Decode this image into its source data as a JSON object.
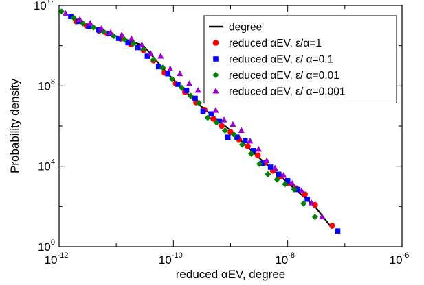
{
  "chart_data": {
    "type": "scatter",
    "xlabel": "reduced  αEV, degree",
    "ylabel": "Probability density",
    "x_scale": "log",
    "y_scale": "log",
    "xlim": [
      1e-12,
      1e-06
    ],
    "ylim": [
      1,
      1000000000000.0
    ],
    "x_ticks": [
      {
        "base": "10",
        "exp": "-12"
      },
      {
        "base": "10",
        "exp": "-10"
      },
      {
        "base": "10",
        "exp": "-8"
      },
      {
        "base": "10",
        "exp": "-6"
      }
    ],
    "y_ticks": [
      {
        "base": "10",
        "exp": "0"
      },
      {
        "base": "10",
        "exp": "4"
      },
      {
        "base": "10",
        "exp": "8"
      },
      {
        "base": "10",
        "exp": "12"
      }
    ],
    "grid": false,
    "legend_position": "top-right",
    "series": [
      {
        "name": "degree",
        "kind": "line",
        "color": "#000000",
        "points": [
          [
            1.5e-12,
            300000000000.0
          ],
          [
            3e-12,
            100000000000.0
          ],
          [
            1e-11,
            30000000000.0
          ],
          [
            3e-11,
            10000000000.0
          ],
          [
            6e-11,
            1000000000.0
          ],
          [
            1e-10,
            200000000.0
          ],
          [
            3e-10,
            10000000.0
          ],
          [
            1e-09,
            600000.0
          ],
          [
            3e-09,
            30000.0
          ],
          [
            1e-08,
            1500.0
          ],
          [
            3e-08,
            100.0
          ],
          [
            6e-08,
            8
          ]
        ]
      },
      {
        "name": "reduced  αEV,  ε/α=1",
        "kind": "circle",
        "color": "#ff0000",
        "points": [
          [
            2e-12,
            160000000000.0
          ],
          [
            3e-12,
            100000000000.0
          ],
          [
            5e-12,
            55000000000.0
          ],
          [
            7e-12,
            40000000000.0
          ],
          [
            1.2e-11,
            22000000000.0
          ],
          [
            1.8e-11,
            12000000000.0
          ],
          [
            3e-11,
            6000000000.0
          ],
          [
            4.5e-11,
            1800000000.0
          ],
          [
            7e-11,
            450000000.0
          ],
          [
            1.1e-10,
            130000000.0
          ],
          [
            1.6e-10,
            50000000.0
          ],
          [
            2.5e-10,
            15000000.0
          ],
          [
            3.5e-10,
            6500000.0
          ],
          [
            5e-10,
            2300000.0
          ],
          [
            7e-10,
            1000000.0
          ],
          [
            1e-09,
            500000.0
          ],
          [
            1.4e-09,
            220000.0
          ],
          [
            2e-09,
            100000.0
          ],
          [
            3e-09,
            35000.0
          ],
          [
            4e-09,
            15000.0
          ],
          [
            5.5e-09,
            6000.0
          ],
          [
            7.5e-09,
            3000.0
          ],
          [
            1e-08,
            1500.0
          ],
          [
            1.4e-08,
            800.0
          ],
          [
            2e-08,
            400.0
          ],
          [
            3e-08,
            120.0
          ],
          [
            6e-08,
            11.0
          ]
        ]
      },
      {
        "name": "reduced  αEV,  ε/ α=0.1",
        "kind": "square",
        "color": "#0000ff",
        "points": [
          [
            1.6e-12,
            280000000000.0
          ],
          [
            2.2e-12,
            160000000000.0
          ],
          [
            3.3e-12,
            90000000000.0
          ],
          [
            5e-12,
            60000000000.0
          ],
          [
            7.5e-12,
            40000000000.0
          ],
          [
            1.1e-11,
            23000000000.0
          ],
          [
            1.6e-11,
            14000000000.0
          ],
          [
            2.4e-11,
            8000000000.0
          ],
          [
            3.5e-11,
            3000000000.0
          ],
          [
            5.5e-11,
            900000000.0
          ],
          [
            8e-11,
            400000000.0
          ],
          [
            1.2e-10,
            120000000.0
          ],
          [
            1.7e-10,
            60000000.0
          ],
          [
            2.4e-10,
            24000000.0
          ],
          [
            3.3e-10,
            5500000.0
          ],
          [
            4.6e-10,
            4000000.0
          ],
          [
            6.4e-10,
            1800000.0
          ],
          [
            9e-10,
            280000.0
          ],
          [
            1.3e-09,
            280000.0
          ],
          [
            1.8e-09,
            190000.0
          ],
          [
            2.5e-09,
            60000.0
          ],
          [
            3.6e-09,
            14000.0
          ],
          [
            5e-09,
            9000.0
          ],
          [
            7e-09,
            4000.0
          ],
          [
            1e-08,
            1900.0
          ],
          [
            1.5e-08,
            700.0
          ],
          [
            2.2e-08,
            230.0
          ],
          [
            7.5e-08,
            6
          ]
        ]
      },
      {
        "name": "reduced  αEV,  ε/ α=0.01",
        "kind": "diamond",
        "color": "#008000",
        "points": [
          [
            1.1e-12,
            500000000000.0
          ],
          [
            1.8e-12,
            240000000000.0
          ],
          [
            2.6e-12,
            130000000000.0
          ],
          [
            4e-12,
            80000000000.0
          ],
          [
            6e-12,
            50000000000.0
          ],
          [
            9e-12,
            30000000000.0
          ],
          [
            1.4e-11,
            20000000000.0
          ],
          [
            2e-11,
            13000000000.0
          ],
          [
            3e-11,
            7000000000.0
          ],
          [
            4.5e-11,
            2000000000.0
          ],
          [
            6.5e-11,
            800000000.0
          ],
          [
            9.5e-11,
            220000000.0
          ],
          [
            1.4e-10,
            80000000.0
          ],
          [
            2e-10,
            32000000.0
          ],
          [
            2.8e-10,
            14000000.0
          ],
          [
            4e-10,
            2600000.0
          ],
          [
            5.7e-10,
            1500000.0
          ],
          [
            8e-10,
            600000.0
          ],
          [
            1.15e-09,
            370000.0
          ],
          [
            1.6e-09,
            120000.0
          ],
          [
            2.3e-09,
            42000.0
          ],
          [
            3.2e-09,
            13000.0
          ],
          [
            4.5e-09,
            4000.0
          ],
          [
            6.5e-09,
            2200.0
          ],
          [
            9e-09,
            1300.0
          ],
          [
            1.3e-08,
            700.0
          ],
          [
            1.9e-08,
            140.0
          ],
          [
            3e-08,
            30.0
          ]
        ]
      },
      {
        "name": "reduced  αEV,  ε/ α=0.001",
        "kind": "triangle",
        "color": "#9900cc",
        "points": [
          [
            1.3e-12,
            400000000000.0
          ],
          [
            2.3e-12,
            200000000000.0
          ],
          [
            3.5e-12,
            130000000000.0
          ],
          [
            5.5e-12,
            70000000000.0
          ],
          [
            8e-12,
            45000000000.0
          ],
          [
            1.25e-11,
            35000000000.0
          ],
          [
            1.85e-11,
            22000000000.0
          ],
          [
            2.8e-11,
            11000000000.0
          ],
          [
            4e-11,
            4000000000.0
          ],
          [
            6e-11,
            3000000000.0
          ],
          [
            8.8e-11,
            700000000.0
          ],
          [
            1.3e-10,
            400000000.0
          ],
          [
            1.9e-10,
            130000000.0
          ],
          [
            2.7e-10,
            60000000.0
          ],
          [
            3.9e-10,
            30000000.0
          ],
          [
            5.5e-10,
            6000000.0
          ],
          [
            7.7e-10,
            2000000.0
          ],
          [
            1.1e-09,
            1200000.0
          ],
          [
            1.55e-09,
            600000.0
          ],
          [
            2.2e-09,
            180000.0
          ],
          [
            3.1e-09,
            70000.0
          ],
          [
            4.3e-09,
            19000.0
          ],
          [
            6e-09,
            8000.0
          ],
          [
            8.5e-09,
            3500.0
          ],
          [
            1.2e-08,
            1400.0
          ],
          [
            1.75e-08,
            600.0
          ],
          [
            2.6e-08,
            150.0
          ],
          [
            4e-08,
            30.0
          ]
        ]
      }
    ]
  }
}
